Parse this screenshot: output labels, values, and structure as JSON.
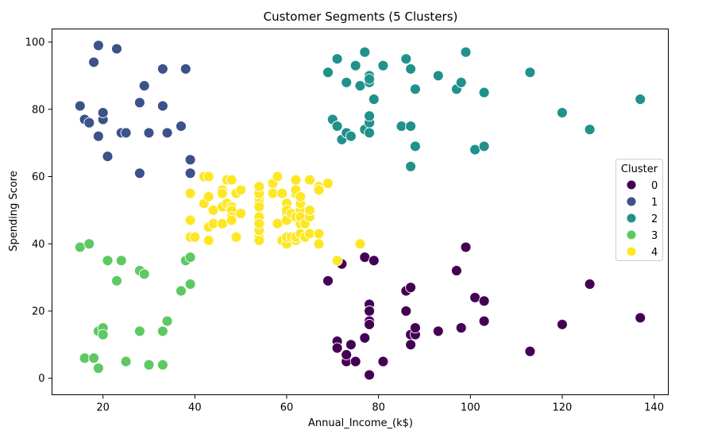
{
  "chart_data": {
    "type": "scatter",
    "title": "Customer Segments (5 Clusters)",
    "xlabel": "Annual_Income_(k$)",
    "ylabel": "Spending Score",
    "xlim": [
      8.9,
      143.1
    ],
    "ylim": [
      -4.9,
      103.9
    ],
    "xticks": [
      20,
      40,
      60,
      80,
      100,
      120,
      140
    ],
    "yticks": [
      0,
      20,
      40,
      60,
      80,
      100
    ],
    "grid": false,
    "legend": {
      "title": "Cluster",
      "placement": "center-right"
    },
    "series": [
      {
        "name": "0",
        "color": "#440154",
        "points": [
          [
            69,
            29
          ],
          [
            71,
            11
          ],
          [
            71,
            9
          ],
          [
            72,
            34
          ],
          [
            73,
            5
          ],
          [
            73,
            7
          ],
          [
            74,
            10
          ],
          [
            75,
            5
          ],
          [
            77,
            12
          ],
          [
            77,
            36
          ],
          [
            78,
            22
          ],
          [
            78,
            20
          ],
          [
            78,
            17
          ],
          [
            78,
            16
          ],
          [
            79,
            35
          ],
          [
            78,
            1
          ],
          [
            81,
            5
          ],
          [
            86,
            26
          ],
          [
            86,
            20
          ],
          [
            87,
            13
          ],
          [
            87,
            10
          ],
          [
            87,
            27
          ],
          [
            88,
            13
          ],
          [
            88,
            15
          ],
          [
            93,
            14
          ],
          [
            97,
            32
          ],
          [
            98,
            15
          ],
          [
            99,
            39
          ],
          [
            101,
            24
          ],
          [
            103,
            23
          ],
          [
            103,
            17
          ],
          [
            113,
            8
          ],
          [
            120,
            16
          ],
          [
            126,
            28
          ],
          [
            137,
            18
          ]
        ]
      },
      {
        "name": "1",
        "color": "#3b528b",
        "points": [
          [
            15,
            81
          ],
          [
            16,
            77
          ],
          [
            17,
            76
          ],
          [
            18,
            94
          ],
          [
            19,
            72
          ],
          [
            19,
            99
          ],
          [
            20,
            77
          ],
          [
            20,
            79
          ],
          [
            21,
            66
          ],
          [
            23,
            98
          ],
          [
            24,
            73
          ],
          [
            25,
            73
          ],
          [
            28,
            82
          ],
          [
            28,
            61
          ],
          [
            29,
            87
          ],
          [
            30,
            73
          ],
          [
            33,
            92
          ],
          [
            33,
            81
          ],
          [
            34,
            73
          ],
          [
            37,
            75
          ],
          [
            38,
            92
          ],
          [
            39,
            65
          ],
          [
            39,
            61
          ]
        ]
      },
      {
        "name": "2",
        "color": "#21918c",
        "points": [
          [
            69,
            91
          ],
          [
            70,
            77
          ],
          [
            71,
            95
          ],
          [
            71,
            75
          ],
          [
            72,
            71
          ],
          [
            73,
            88
          ],
          [
            73,
            73
          ],
          [
            74,
            72
          ],
          [
            75,
            93
          ],
          [
            76,
            87
          ],
          [
            77,
            97
          ],
          [
            77,
            74
          ],
          [
            78,
            90
          ],
          [
            78,
            88
          ],
          [
            78,
            89
          ],
          [
            78,
            76
          ],
          [
            78,
            78
          ],
          [
            78,
            73
          ],
          [
            79,
            83
          ],
          [
            81,
            93
          ],
          [
            85,
            75
          ],
          [
            86,
            95
          ],
          [
            87,
            92
          ],
          [
            87,
            75
          ],
          [
            87,
            63
          ],
          [
            88,
            86
          ],
          [
            88,
            69
          ],
          [
            93,
            90
          ],
          [
            97,
            86
          ],
          [
            98,
            88
          ],
          [
            99,
            97
          ],
          [
            101,
            68
          ],
          [
            103,
            85
          ],
          [
            103,
            69
          ],
          [
            113,
            91
          ],
          [
            120,
            79
          ],
          [
            126,
            74
          ],
          [
            137,
            83
          ]
        ]
      },
      {
        "name": "3",
        "color": "#5ec962",
        "points": [
          [
            15,
            39
          ],
          [
            16,
            6
          ],
          [
            17,
            40
          ],
          [
            18,
            6
          ],
          [
            19,
            3
          ],
          [
            19,
            14
          ],
          [
            20,
            15
          ],
          [
            20,
            13
          ],
          [
            21,
            35
          ],
          [
            23,
            29
          ],
          [
            24,
            35
          ],
          [
            25,
            5
          ],
          [
            28,
            32
          ],
          [
            28,
            14
          ],
          [
            29,
            31
          ],
          [
            30,
            4
          ],
          [
            33,
            4
          ],
          [
            33,
            14
          ],
          [
            34,
            17
          ],
          [
            37,
            26
          ],
          [
            38,
            35
          ],
          [
            39,
            36
          ],
          [
            39,
            28
          ]
        ]
      },
      {
        "name": "4",
        "color": "#fde725",
        "points": [
          [
            39,
            55
          ],
          [
            39,
            47
          ],
          [
            39,
            42
          ],
          [
            40,
            42
          ],
          [
            42,
            52
          ],
          [
            42,
            60
          ],
          [
            43,
            54
          ],
          [
            43,
            60
          ],
          [
            43,
            45
          ],
          [
            43,
            41
          ],
          [
            44,
            50
          ],
          [
            44,
            46
          ],
          [
            46,
            51
          ],
          [
            46,
            46
          ],
          [
            46,
            56
          ],
          [
            46,
            55
          ],
          [
            47,
            52
          ],
          [
            47,
            59
          ],
          [
            48,
            51
          ],
          [
            48,
            59
          ],
          [
            48,
            50
          ],
          [
            48,
            48
          ],
          [
            48,
            59
          ],
          [
            48,
            47
          ],
          [
            49,
            55
          ],
          [
            49,
            42
          ],
          [
            50,
            49
          ],
          [
            50,
            56
          ],
          [
            54,
            47
          ],
          [
            54,
            54
          ],
          [
            54,
            53
          ],
          [
            54,
            48
          ],
          [
            54,
            52
          ],
          [
            54,
            42
          ],
          [
            54,
            51
          ],
          [
            54,
            55
          ],
          [
            54,
            41
          ],
          [
            54,
            44
          ],
          [
            54,
            57
          ],
          [
            54,
            46
          ],
          [
            57,
            58
          ],
          [
            57,
            55
          ],
          [
            58,
            60
          ],
          [
            58,
            46
          ],
          [
            59,
            55
          ],
          [
            59,
            41
          ],
          [
            60,
            49
          ],
          [
            60,
            40
          ],
          [
            60,
            42
          ],
          [
            60,
            52
          ],
          [
            60,
            47
          ],
          [
            60,
            50
          ],
          [
            61,
            42
          ],
          [
            61,
            49
          ],
          [
            62,
            41
          ],
          [
            62,
            48
          ],
          [
            62,
            59
          ],
          [
            62,
            55
          ],
          [
            62,
            56
          ],
          [
            62,
            42
          ],
          [
            63,
            50
          ],
          [
            63,
            46
          ],
          [
            63,
            43
          ],
          [
            63,
            48
          ],
          [
            63,
            52
          ],
          [
            63,
            54
          ],
          [
            64,
            42
          ],
          [
            64,
            46
          ],
          [
            65,
            48
          ],
          [
            65,
            50
          ],
          [
            65,
            43
          ],
          [
            65,
            59
          ],
          [
            67,
            43
          ],
          [
            67,
            57
          ],
          [
            67,
            56
          ],
          [
            67,
            40
          ],
          [
            69,
            58
          ],
          [
            71,
            35
          ],
          [
            76,
            40
          ]
        ]
      }
    ]
  }
}
